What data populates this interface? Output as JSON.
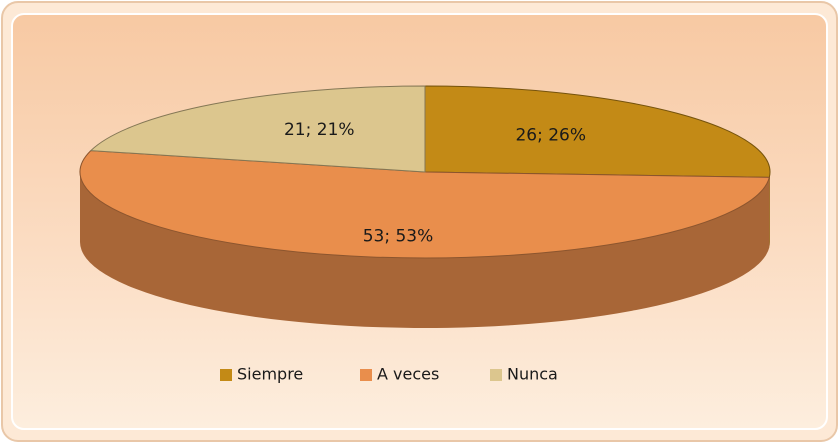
{
  "chart_data": {
    "type": "pie3d",
    "categories": [
      "Siempre",
      "A veces",
      "Nunca"
    ],
    "values": [
      26,
      53,
      21
    ],
    "value_labels": [
      "26; 26%",
      "53; 53%",
      "21; 21%"
    ],
    "colors": [
      "#c38a16",
      "#e98e4c",
      "#dcc68e"
    ],
    "legend": "bottom"
  }
}
